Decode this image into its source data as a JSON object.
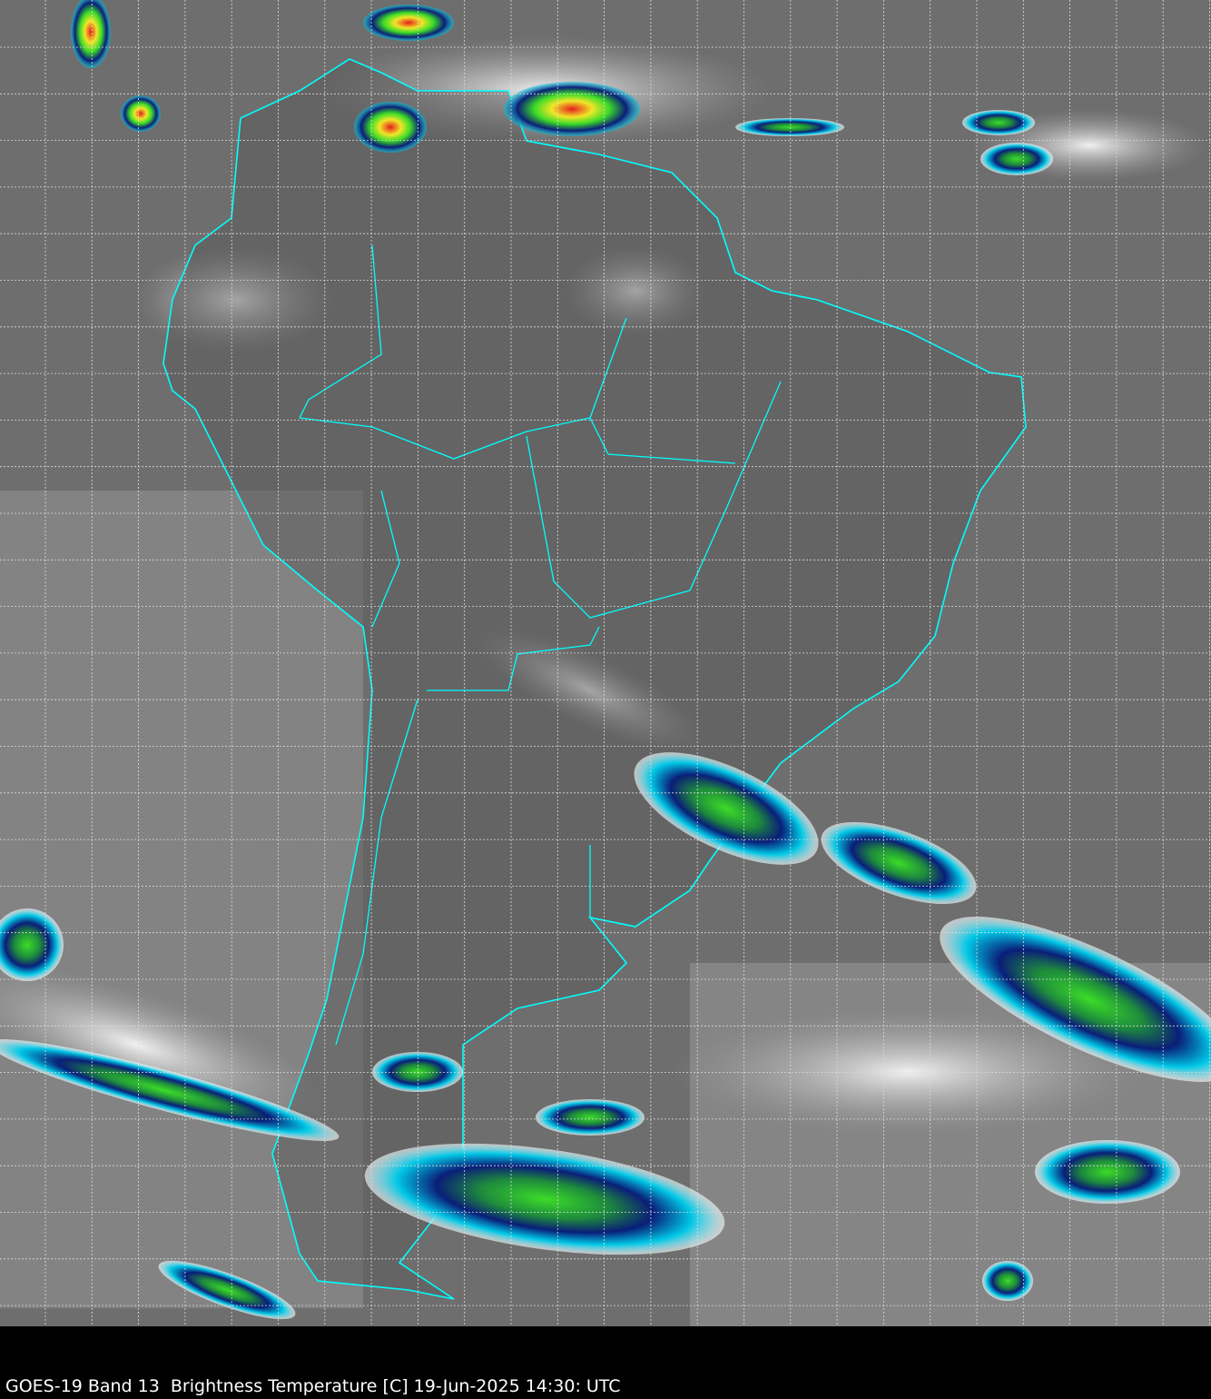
{
  "caption": "GOES-19 Band 13  Brightness Temperature [C] 19-Jun-2025 14:30: UTC",
  "colors": {
    "background": "#6e6e6e",
    "land_dark": "#555555",
    "ocean_light": "#8a8a8a",
    "border": "#00ffff",
    "grid": "#dcdcdc",
    "cloud_cold_navy": "#0a1e78",
    "cloud_cyan": "#00c8e6",
    "cloud_green": "#3cdc28",
    "cloud_yellow": "#f0e628",
    "cloud_red": "#e61e1e",
    "caption_bar": "#000000",
    "caption_text": "#ffffff"
  }
}
